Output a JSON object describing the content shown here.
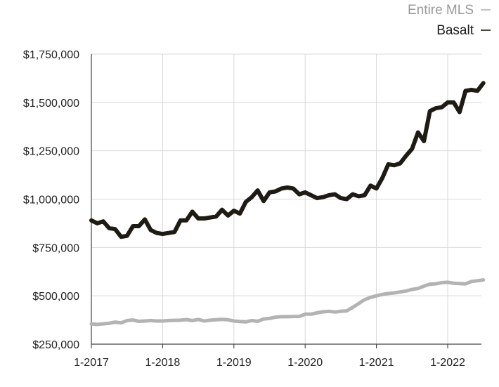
{
  "chart_data": {
    "type": "line",
    "title": "",
    "xlabel": "",
    "ylabel": "",
    "x_ticks": [
      "1-2017",
      "1-2018",
      "1-2019",
      "1-2020",
      "1-2021",
      "1-2022"
    ],
    "y_ticks": [
      "$250,000",
      "$500,000",
      "$750,000",
      "$1,000,000",
      "$1,250,000",
      "$1,500,000",
      "$1,750,000"
    ],
    "y_tick_values": [
      250000,
      500000,
      750000,
      1000000,
      1250000,
      1500000,
      1750000
    ],
    "ylim": [
      250000,
      1750000
    ],
    "x_range": [
      "2017-01",
      "2022-07"
    ],
    "grid": true,
    "legend_position": "top-right",
    "series": [
      {
        "name": "Entire MLS",
        "color": "#b3b3b3",
        "values": [
          355000,
          352000,
          355000,
          358000,
          364000,
          360000,
          372000,
          375000,
          368000,
          370000,
          372000,
          370000,
          370000,
          372000,
          373000,
          374000,
          377000,
          372000,
          378000,
          370000,
          374000,
          376000,
          378000,
          376000,
          370000,
          367000,
          365000,
          372000,
          368000,
          380000,
          383000,
          390000,
          392000,
          392000,
          393000,
          393000,
          405000,
          405000,
          412000,
          417000,
          420000,
          416000,
          420000,
          422000,
          440000,
          460000,
          480000,
          492000,
          500000,
          507000,
          512000,
          515000,
          520000,
          525000,
          533000,
          538000,
          550000,
          560000,
          562000,
          568000,
          570000,
          565000,
          563000,
          562000,
          574000,
          578000,
          582000
        ]
      },
      {
        "name": "Basalt",
        "color": "#1e1a14",
        "values": [
          890000,
          875000,
          885000,
          850000,
          845000,
          805000,
          810000,
          860000,
          860000,
          895000,
          840000,
          825000,
          820000,
          825000,
          830000,
          890000,
          890000,
          935000,
          900000,
          900000,
          905000,
          910000,
          945000,
          915000,
          940000,
          925000,
          985000,
          1010000,
          1045000,
          990000,
          1035000,
          1040000,
          1055000,
          1060000,
          1055000,
          1025000,
          1035000,
          1020000,
          1005000,
          1010000,
          1020000,
          1025000,
          1005000,
          1000000,
          1025000,
          1015000,
          1020000,
          1070000,
          1055000,
          1110000,
          1180000,
          1175000,
          1185000,
          1225000,
          1260000,
          1345000,
          1300000,
          1455000,
          1470000,
          1475000,
          1500000,
          1500000,
          1450000,
          1560000,
          1565000,
          1560000,
          1600000
        ]
      }
    ]
  }
}
